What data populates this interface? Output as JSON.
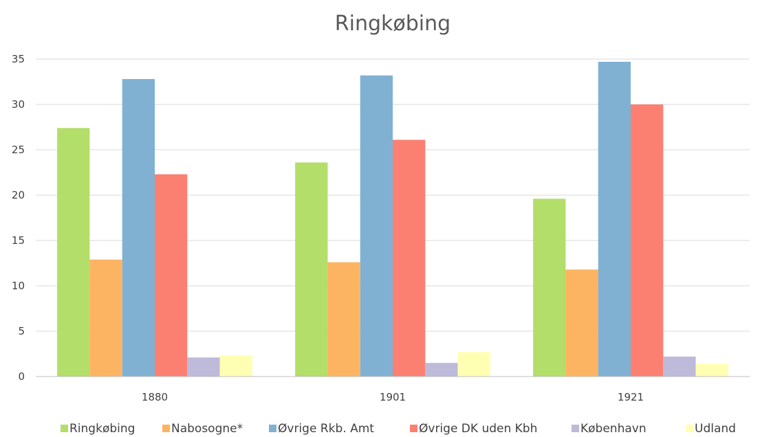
{
  "chart_data": {
    "type": "bar",
    "title": "Ringkøbing",
    "xlabel": "",
    "ylabel": "",
    "categories": [
      "1880",
      "1901",
      "1921"
    ],
    "ylim": [
      0,
      35
    ],
    "yticks": [
      0,
      5,
      10,
      15,
      20,
      25,
      30,
      35
    ],
    "grid": true,
    "legend_position": "bottom",
    "series": [
      {
        "name": "Ringkøbing",
        "color": "#b3de69",
        "values": [
          27.4,
          23.6,
          19.6
        ]
      },
      {
        "name": "Nabosogne*",
        "color": "#fdb462",
        "values": [
          12.9,
          12.6,
          11.8
        ]
      },
      {
        "name": "Øvrige Rkb. Amt",
        "color": "#80b1d3",
        "values": [
          32.8,
          33.2,
          34.7
        ]
      },
      {
        "name": "Øvrige DK uden Kbh",
        "color": "#fb8072",
        "values": [
          22.3,
          26.1,
          30.0
        ]
      },
      {
        "name": "København",
        "color": "#bebada",
        "values": [
          2.1,
          1.5,
          2.2
        ]
      },
      {
        "name": "Udland",
        "color": "#ffffb3",
        "values": [
          2.3,
          2.7,
          1.4
        ]
      }
    ]
  }
}
